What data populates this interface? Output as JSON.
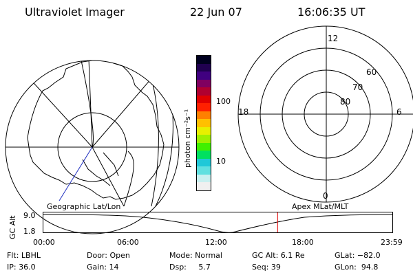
{
  "header": {
    "title": "Ultraviolet Imager",
    "date": "22 Jun 07",
    "time": "16:06:35 UT"
  },
  "colorbar": {
    "unit_label": "photon cm⁻²s⁻¹",
    "ticks": [
      "100",
      "10"
    ],
    "colors": [
      "#f0f0f0",
      "#c8f0f0",
      "#60e0e0",
      "#20c8d8",
      "#00e060",
      "#40f000",
      "#a0f000",
      "#e8f000",
      "#ffc000",
      "#ff8000",
      "#ff2000",
      "#e00000",
      "#b00030",
      "#800060",
      "#400080",
      "#200050",
      "#000020"
    ]
  },
  "polar_plot": {
    "mlt_labels": {
      "top": "12",
      "left": "18",
      "right": "6",
      "bottom": "0"
    },
    "lat_labels": [
      "60",
      "70",
      "80"
    ]
  },
  "strip": {
    "left_label": "Geographic Lat/Lon",
    "right_label": "Apex MLat/MLT",
    "axis_title": "GC Alt",
    "y_ticks": [
      "9.0",
      "1.8"
    ],
    "x_ticks": [
      "00:00",
      "06:00",
      "12:00",
      "18:00",
      "23:59"
    ],
    "marker_time_hours": 16.11,
    "marker_color": "#e00000"
  },
  "footer": {
    "filter": "Flt: LBHL",
    "ip": "IP: 36.0",
    "door": "Door: Open",
    "gain": "Gain: 14",
    "mode": "Mode: Normal",
    "dsp": "Dsp:     5.7",
    "gc_alt": "GC Alt: 6.1 Re",
    "seq": "Seq: 39",
    "glat": "GLat: −82.0",
    "glon": "GLon:  94.8"
  }
}
